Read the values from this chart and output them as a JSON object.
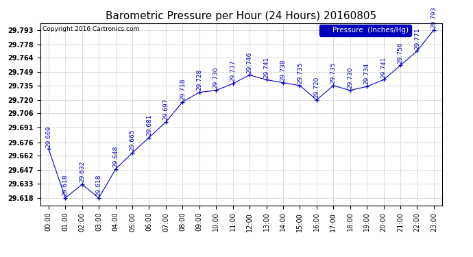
{
  "title": "Barometric Pressure per Hour (24 Hours) 20160805",
  "copyright": "Copyright 2016 Cartronics.com",
  "legend_label": "Pressure  (Inches/Hg)",
  "hours": [
    "00:00",
    "01:00",
    "02:00",
    "03:00",
    "04:00",
    "05:00",
    "06:00",
    "07:00",
    "08:00",
    "09:00",
    "10:00",
    "11:00",
    "12:00",
    "13:00",
    "14:00",
    "15:00",
    "16:00",
    "17:00",
    "18:00",
    "19:00",
    "20:00",
    "21:00",
    "22:00",
    "23:00"
  ],
  "values": [
    29.669,
    29.618,
    29.632,
    29.618,
    29.648,
    29.665,
    29.681,
    29.697,
    29.718,
    29.728,
    29.73,
    29.737,
    29.746,
    29.741,
    29.738,
    29.735,
    29.72,
    29.735,
    29.73,
    29.734,
    29.741,
    29.756,
    29.771,
    29.793
  ],
  "line_color": "#0000CC",
  "marker_color": "#0000CC",
  "background_color": "#FFFFFF",
  "grid_color": "#BBBBBB",
  "title_color": "#000000",
  "label_color": "#0000CC",
  "ylim_min": 29.61,
  "ylim_max": 29.8,
  "ytick_values": [
    29.618,
    29.633,
    29.647,
    29.662,
    29.676,
    29.691,
    29.706,
    29.72,
    29.735,
    29.749,
    29.764,
    29.778,
    29.793
  ],
  "title_fontsize": 11,
  "label_fontsize": 6.5,
  "tick_fontsize": 7,
  "copyright_fontsize": 6.5,
  "legend_fontsize": 7.5
}
